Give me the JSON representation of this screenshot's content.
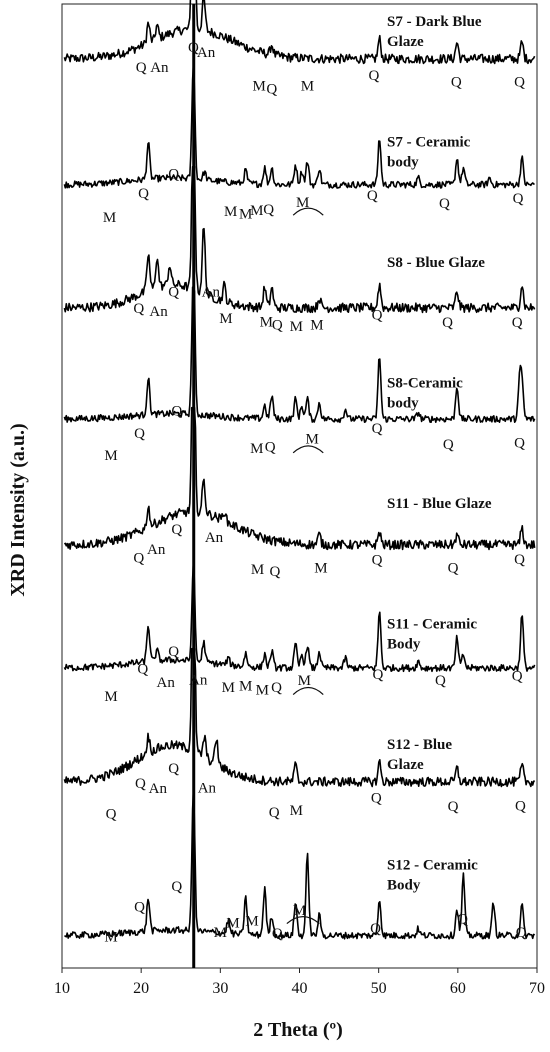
{
  "chart_data": {
    "type": "line",
    "title": "",
    "xlabel": "2 Theta (º)",
    "ylabel": "XRD Intensity (a.u.)",
    "xlim": [
      10,
      70
    ],
    "xticks": [
      "10",
      "20",
      "30",
      "40",
      "50",
      "60",
      "70"
    ],
    "yticks": "none",
    "grid": false,
    "legend": "none",
    "stacked": "vertical offset",
    "series": [
      {
        "name": "S7 - Dark Blue Glaze",
        "label_lines": [
          "S7  - Dark Blue",
          "Glaze"
        ],
        "baseline": 0.9,
        "hump_center": 26.5,
        "hump_amp": 0.45,
        "hump_width": 5,
        "noise": 0.07,
        "peaks": [
          [
            20.9,
            0.3
          ],
          [
            22.0,
            0.2
          ],
          [
            26.6,
            3.8
          ],
          [
            27.9,
            0.5
          ],
          [
            36.5,
            0.15
          ],
          [
            50.1,
            0.3
          ],
          [
            59.9,
            0.25
          ],
          [
            68.1,
            0.25
          ]
        ],
        "annotations": [
          {
            "text": "Q",
            "x": 26.6,
            "y": 1.0
          },
          {
            "text": "Q",
            "x": 20.0,
            "y": 0.7
          },
          {
            "text": "An",
            "x": 22.3,
            "y": 0.7
          },
          {
            "text": "An",
            "x": 28.2,
            "y": 0.93
          },
          {
            "text": "M",
            "x": 34.9,
            "y": 0.42
          },
          {
            "text": "Q",
            "x": 36.5,
            "y": 0.38
          },
          {
            "text": "M",
            "x": 41.0,
            "y": 0.42
          },
          {
            "text": "Q",
            "x": 49.4,
            "y": 0.58
          },
          {
            "text": "Q",
            "x": 59.8,
            "y": 0.48
          },
          {
            "text": "Q",
            "x": 67.8,
            "y": 0.48
          }
        ]
      },
      {
        "name": "S7 - Ceramic body",
        "label_lines": [
          "S7 - Ceramic",
          "body"
        ],
        "baseline": 0.82,
        "hump_center": 24,
        "hump_amp": 0.1,
        "hump_width": 5,
        "noise": 0.05,
        "peaks": [
          [
            20.9,
            0.55
          ],
          [
            26.6,
            1.8
          ],
          [
            28.0,
            0.12
          ],
          [
            33.2,
            0.2
          ],
          [
            35.6,
            0.25
          ],
          [
            36.5,
            0.25
          ],
          [
            39.5,
            0.3
          ],
          [
            40.3,
            0.2
          ],
          [
            41.0,
            0.35
          ],
          [
            42.5,
            0.25
          ],
          [
            50.1,
            0.7
          ],
          [
            55.0,
            0.1
          ],
          [
            59.9,
            0.4
          ],
          [
            60.7,
            0.25
          ],
          [
            64.0,
            0.1
          ],
          [
            68.1,
            0.4
          ]
        ],
        "annotations": [
          {
            "text": "Q",
            "x": 24.1,
            "y": 0.91
          },
          {
            "text": "Q",
            "x": 20.3,
            "y": 0.62
          },
          {
            "text": "M",
            "x": 16.0,
            "y": 0.26
          },
          {
            "text": "M",
            "x": 31.3,
            "y": 0.35
          },
          {
            "text": "M",
            "x": 33.2,
            "y": 0.31
          },
          {
            "text": "M",
            "x": 34.6,
            "y": 0.36
          },
          {
            "text": "Q",
            "x": 36.1,
            "y": 0.38
          },
          {
            "text": "M",
            "x": 40.4,
            "y": 0.48
          },
          {
            "text": "Q",
            "x": 49.2,
            "y": 0.59
          },
          {
            "text": "Q",
            "x": 58.3,
            "y": 0.47
          },
          {
            "text": "Q",
            "x": 67.6,
            "y": 0.54
          }
        ]
      },
      {
        "name": "S8 - Blue Glaze",
        "label_lines": [
          "S8 - Blue Glaze"
        ],
        "baseline": 0.78,
        "hump_center": 24,
        "hump_amp": 0.35,
        "hump_width": 4,
        "noise": 0.07,
        "peaks": [
          [
            20.9,
            0.55
          ],
          [
            22.0,
            0.45
          ],
          [
            23.6,
            0.3
          ],
          [
            26.6,
            3.0
          ],
          [
            27.9,
            1.0
          ],
          [
            30.5,
            0.25
          ],
          [
            35.6,
            0.3
          ],
          [
            36.5,
            0.3
          ],
          [
            42.5,
            0.15
          ],
          [
            50.1,
            0.35
          ],
          [
            59.9,
            0.25
          ],
          [
            68.1,
            0.35
          ]
        ],
        "annotations": [
          {
            "text": "Q",
            "x": 24.1,
            "y": 0.95
          },
          {
            "text": "An",
            "x": 28.8,
            "y": 0.95
          },
          {
            "text": "Q",
            "x": 19.7,
            "y": 0.7
          },
          {
            "text": "An",
            "x": 22.2,
            "y": 0.66
          },
          {
            "text": "M",
            "x": 30.7,
            "y": 0.55
          },
          {
            "text": "M",
            "x": 35.8,
            "y": 0.5
          },
          {
            "text": "Q",
            "x": 37.2,
            "y": 0.45
          },
          {
            "text": "M",
            "x": 39.6,
            "y": 0.43
          },
          {
            "text": "M",
            "x": 42.2,
            "y": 0.45
          },
          {
            "text": "Q",
            "x": 49.8,
            "y": 0.6
          },
          {
            "text": "Q",
            "x": 58.7,
            "y": 0.49
          },
          {
            "text": "Q",
            "x": 67.5,
            "y": 0.49
          }
        ]
      },
      {
        "name": "S8-Ceramic body",
        "label_lines": [
          "S8-Ceramic",
          "body"
        ],
        "baseline": 0.92,
        "hump_center": 24,
        "hump_amp": 0.08,
        "hump_width": 5,
        "noise": 0.05,
        "peaks": [
          [
            20.9,
            0.55
          ],
          [
            26.6,
            2.5
          ],
          [
            35.6,
            0.2
          ],
          [
            36.5,
            0.35
          ],
          [
            39.5,
            0.3
          ],
          [
            40.3,
            0.2
          ],
          [
            41.0,
            0.3
          ],
          [
            42.5,
            0.25
          ],
          [
            45.8,
            0.15
          ],
          [
            50.1,
            0.95
          ],
          [
            55.0,
            0.1
          ],
          [
            59.9,
            0.5
          ],
          [
            67.8,
            0.55
          ],
          [
            68.1,
            0.55
          ]
        ],
        "annotations": [
          {
            "text": "Q",
            "x": 24.5,
            "y": 0.97
          },
          {
            "text": "Q",
            "x": 19.8,
            "y": 0.63
          },
          {
            "text": "M",
            "x": 16.2,
            "y": 0.3
          },
          {
            "text": "M",
            "x": 34.6,
            "y": 0.41
          },
          {
            "text": "Q",
            "x": 36.3,
            "y": 0.43
          },
          {
            "text": "M",
            "x": 41.6,
            "y": 0.55
          },
          {
            "text": "Q",
            "x": 49.8,
            "y": 0.71
          },
          {
            "text": "Q",
            "x": 58.8,
            "y": 0.47
          },
          {
            "text": "Q",
            "x": 67.8,
            "y": 0.49
          }
        ]
      },
      {
        "name": "S11 - Blue Glaze",
        "label_lines": [
          "S11 - Blue Glaze"
        ],
        "baseline": 0.84,
        "hump_center": 26.5,
        "hump_amp": 0.5,
        "hump_width": 5,
        "noise": 0.07,
        "peaks": [
          [
            20.9,
            0.3
          ],
          [
            26.6,
            3.4
          ],
          [
            27.9,
            0.5
          ],
          [
            30.5,
            0.15
          ],
          [
            42.5,
            0.15
          ],
          [
            50.1,
            0.2
          ],
          [
            59.9,
            0.15
          ],
          [
            68.1,
            0.25
          ]
        ],
        "annotations": [
          {
            "text": "Q",
            "x": 24.5,
            "y": 1.0
          },
          {
            "text": "An",
            "x": 29.2,
            "y": 0.88
          },
          {
            "text": "An",
            "x": 21.9,
            "y": 0.7
          },
          {
            "text": "Q",
            "x": 19.7,
            "y": 0.57
          },
          {
            "text": "M",
            "x": 34.7,
            "y": 0.4
          },
          {
            "text": "Q",
            "x": 36.9,
            "y": 0.37
          },
          {
            "text": "M",
            "x": 42.7,
            "y": 0.42
          },
          {
            "text": "Q",
            "x": 49.8,
            "y": 0.54
          },
          {
            "text": "Q",
            "x": 59.4,
            "y": 0.42
          },
          {
            "text": "Q",
            "x": 67.8,
            "y": 0.55
          }
        ]
      },
      {
        "name": "S11 - Ceramic Body",
        "label_lines": [
          "S11 - Ceramic",
          "Body"
        ],
        "baseline": 0.8,
        "hump_center": 24,
        "hump_amp": 0.12,
        "hump_width": 5,
        "noise": 0.05,
        "peaks": [
          [
            20.9,
            0.55
          ],
          [
            22.0,
            0.15
          ],
          [
            26.6,
            1.5
          ],
          [
            27.9,
            0.3
          ],
          [
            31.0,
            0.1
          ],
          [
            33.2,
            0.2
          ],
          [
            35.6,
            0.2
          ],
          [
            36.5,
            0.25
          ],
          [
            39.5,
            0.35
          ],
          [
            40.3,
            0.2
          ],
          [
            41.0,
            0.35
          ],
          [
            42.5,
            0.25
          ],
          [
            45.8,
            0.15
          ],
          [
            50.1,
            0.85
          ],
          [
            55.0,
            0.1
          ],
          [
            59.9,
            0.45
          ],
          [
            60.7,
            0.2
          ],
          [
            68.1,
            0.8
          ]
        ],
        "annotations": [
          {
            "text": "Q",
            "x": 24.1,
            "y": 0.98
          },
          {
            "text": "Q",
            "x": 20.2,
            "y": 0.72
          },
          {
            "text": "An",
            "x": 23.1,
            "y": 0.51
          },
          {
            "text": "An",
            "x": 27.2,
            "y": 0.55
          },
          {
            "text": "M",
            "x": 16.2,
            "y": 0.3
          },
          {
            "text": "M",
            "x": 31.0,
            "y": 0.44
          },
          {
            "text": "M",
            "x": 33.2,
            "y": 0.46
          },
          {
            "text": "M",
            "x": 35.3,
            "y": 0.4
          },
          {
            "text": "Q",
            "x": 37.1,
            "y": 0.44
          },
          {
            "text": "M",
            "x": 40.6,
            "y": 0.54
          },
          {
            "text": "Q",
            "x": 49.9,
            "y": 0.63
          },
          {
            "text": "Q",
            "x": 57.8,
            "y": 0.54
          },
          {
            "text": "Q",
            "x": 67.5,
            "y": 0.61
          }
        ]
      },
      {
        "name": "S12 - Blue Glaze",
        "label_lines": [
          "S12 - Blue",
          "Glaze"
        ],
        "baseline": 0.9,
        "hump_center": 24,
        "hump_amp": 0.55,
        "hump_width": 4.5,
        "noise": 0.07,
        "peaks": [
          [
            20.9,
            0.25
          ],
          [
            26.6,
            3.3
          ],
          [
            28.0,
            0.3
          ],
          [
            29.5,
            0.4
          ],
          [
            39.5,
            0.25
          ],
          [
            50.1,
            0.3
          ],
          [
            59.9,
            0.2
          ],
          [
            68.1,
            0.25
          ]
        ],
        "annotations": [
          {
            "text": "Q",
            "x": 24.1,
            "y": 1.03
          },
          {
            "text": "An",
            "x": 28.3,
            "y": 0.74
          },
          {
            "text": "Q",
            "x": 19.9,
            "y": 0.81
          },
          {
            "text": "An",
            "x": 22.1,
            "y": 0.73
          },
          {
            "text": "Q",
            "x": 16.2,
            "y": 0.35
          },
          {
            "text": "Q",
            "x": 36.8,
            "y": 0.37
          },
          {
            "text": "M",
            "x": 39.6,
            "y": 0.4
          },
          {
            "text": "Q",
            "x": 49.7,
            "y": 0.59
          },
          {
            "text": "Q",
            "x": 59.4,
            "y": 0.46
          },
          {
            "text": "Q",
            "x": 67.9,
            "y": 0.47
          }
        ]
      },
      {
        "name": "S12 - Ceramic Body",
        "label_lines": [
          "S12 - Ceramic",
          "Body"
        ],
        "baseline": 0.4,
        "hump_center": 24,
        "hump_amp": 0.08,
        "hump_width": 5,
        "noise": 0.05,
        "peaks": [
          [
            20.9,
            0.5
          ],
          [
            26.6,
            2.2
          ],
          [
            31.0,
            0.2
          ],
          [
            33.2,
            0.55
          ],
          [
            35.6,
            0.7
          ],
          [
            36.5,
            0.3
          ],
          [
            39.5,
            0.5
          ],
          [
            41.0,
            1.2
          ],
          [
            42.5,
            0.3
          ],
          [
            50.1,
            0.55
          ],
          [
            55.0,
            0.1
          ],
          [
            59.9,
            0.4
          ],
          [
            60.7,
            0.9
          ],
          [
            64.5,
            0.5
          ],
          [
            68.1,
            0.45
          ]
        ],
        "annotations": [
          {
            "text": "Q",
            "x": 24.5,
            "y": 1.07
          },
          {
            "text": "Q",
            "x": 19.8,
            "y": 0.76
          },
          {
            "text": "M",
            "x": 16.2,
            "y": 0.31
          },
          {
            "text": "M",
            "x": 30.0,
            "y": 0.38
          },
          {
            "text": "M",
            "x": 31.6,
            "y": 0.52
          },
          {
            "text": "M",
            "x": 34.0,
            "y": 0.55
          },
          {
            "text": "Q",
            "x": 37.2,
            "y": 0.36
          },
          {
            "text": "M",
            "x": 40.0,
            "y": 0.71
          },
          {
            "text": "Q",
            "x": 49.6,
            "y": 0.44
          },
          {
            "text": "Q",
            "x": 60.6,
            "y": 0.58
          },
          {
            "text": "Q",
            "x": 68.0,
            "y": 0.38
          }
        ]
      }
    ],
    "brackets": [
      {
        "series": 1,
        "x1": 39.2,
        "x2": 43.0,
        "y": 0.42
      },
      {
        "series": 3,
        "x1": 39.2,
        "x2": 43.0,
        "y": 0.47
      },
      {
        "series": 5,
        "x1": 39.2,
        "x2": 43.0,
        "y": 0.46
      },
      {
        "series": 7,
        "x1": 38.4,
        "x2": 42.5,
        "y": 0.64
      }
    ]
  }
}
